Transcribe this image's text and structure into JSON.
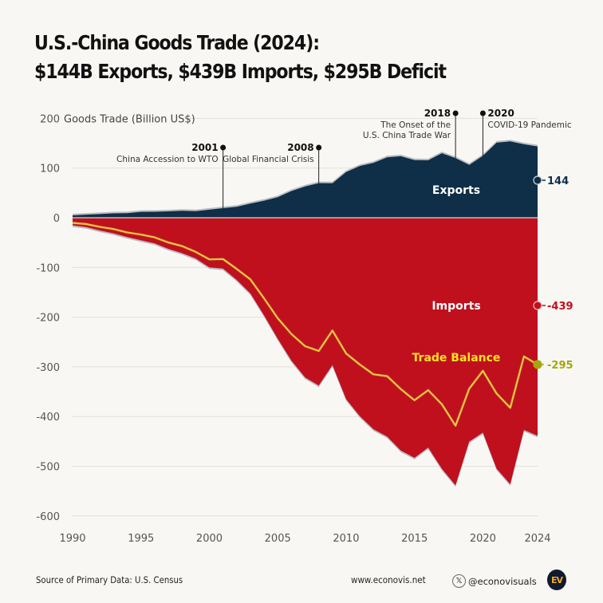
{
  "title": {
    "line1": "U.S.-China Goods Trade (2024):",
    "line2": "$144B Exports, $439B Imports, $295B Deficit"
  },
  "chart_data": {
    "type": "area",
    "title": "U.S.-China Goods Trade (2024): $144B Exports, $439B Imports, $295B Deficit",
    "ylabel": "Goods Trade (Billion US$)",
    "xlabel": "",
    "ylim": [
      -600,
      200
    ],
    "xlim": [
      1990,
      2024
    ],
    "grid": true,
    "yticks": [
      200,
      100,
      0,
      -100,
      -200,
      -300,
      -400,
      -500,
      -600
    ],
    "ytick_labels": [
      "200",
      "100",
      "0",
      "-100",
      "-200",
      "-300",
      "-400",
      "-500",
      "-600"
    ],
    "xticks": [
      1990,
      1995,
      2000,
      2005,
      2010,
      2015,
      2020,
      2024
    ],
    "xtick_labels": [
      "1990",
      "1995",
      "2000",
      "2005",
      "2010",
      "2015",
      "2020",
      "2024"
    ],
    "x": [
      1990,
      1991,
      1992,
      1993,
      1994,
      1995,
      1996,
      1997,
      1998,
      1999,
      2000,
      2001,
      2002,
      2003,
      2004,
      2005,
      2006,
      2007,
      2008,
      2009,
      2010,
      2011,
      2012,
      2013,
      2014,
      2015,
      2016,
      2017,
      2018,
      2019,
      2020,
      2021,
      2022,
      2023,
      2024
    ],
    "series": [
      {
        "name": "Exports",
        "color": "#0f2e47",
        "values": [
          4.8,
          6.3,
          7.4,
          8.8,
          9.3,
          11.8,
          12.0,
          12.9,
          14.2,
          13.1,
          16.2,
          19.2,
          22.1,
          28.4,
          34.4,
          41.2,
          53.7,
          62.9,
          69.7,
          69.5,
          91.9,
          104.1,
          110.5,
          121.7,
          123.7,
          115.9,
          115.6,
          129.8,
          120.1,
          106.4,
          124.5,
          151.1,
          153.8,
          147.8,
          143.5
        ]
      },
      {
        "name": "Imports",
        "color": "#c0101e",
        "values": [
          -15.2,
          -19.0,
          -25.7,
          -31.5,
          -38.8,
          -45.5,
          -51.5,
          -62.6,
          -71.2,
          -81.8,
          -100.0,
          -102.3,
          -125.2,
          -152.4,
          -196.7,
          -243.5,
          -287.8,
          -321.4,
          -337.8,
          -296.4,
          -365.0,
          -399.4,
          -425.6,
          -440.4,
          -468.5,
          -483.2,
          -462.4,
          -505.2,
          -538.5,
          -450.4,
          -432.5,
          -504.9,
          -536.3,
          -426.9,
          -438.9
        ]
      },
      {
        "name": "Trade Balance",
        "color": "#f6c24a",
        "values": [
          -10.4,
          -12.7,
          -18.3,
          -22.8,
          -29.5,
          -33.8,
          -39.5,
          -49.7,
          -57.0,
          -68.7,
          -83.8,
          -83.1,
          -103.1,
          -124.1,
          -162.3,
          -202.3,
          -234.1,
          -258.5,
          -268.0,
          -226.9,
          -273.0,
          -295.3,
          -315.1,
          -318.7,
          -344.8,
          -367.3,
          -346.8,
          -375.4,
          -418.4,
          -344.0,
          -308.0,
          -353.8,
          -382.5,
          -279.1,
          -295.4
        ]
      }
    ],
    "annotations": [
      {
        "year": "2001",
        "text": "China Accession to WTO"
      },
      {
        "year": "2008",
        "text": "Global Financial Crisis"
      },
      {
        "year": "2018",
        "text_lines": [
          "The Onset of the",
          "U.S. China Trade War"
        ]
      },
      {
        "year": "2020",
        "text": "COVID-19 Pandemic"
      }
    ],
    "series_labels": {
      "exports": "Exports",
      "imports": "Imports",
      "trade_balance": "Trade Balance"
    },
    "end_labels": {
      "exports": {
        "text": "144",
        "color": "#0f2e47"
      },
      "imports": {
        "text": "-439",
        "color": "#c0101e"
      },
      "trade_balance": {
        "text": "-295",
        "color": "#a5a70a"
      }
    }
  },
  "footer": {
    "source": "Source of Primary Data: U.S. Census",
    "website": "www.econovis.net",
    "handle": "@econovisuals",
    "x_icon": "x-logo-icon",
    "logo_text": "EV"
  }
}
